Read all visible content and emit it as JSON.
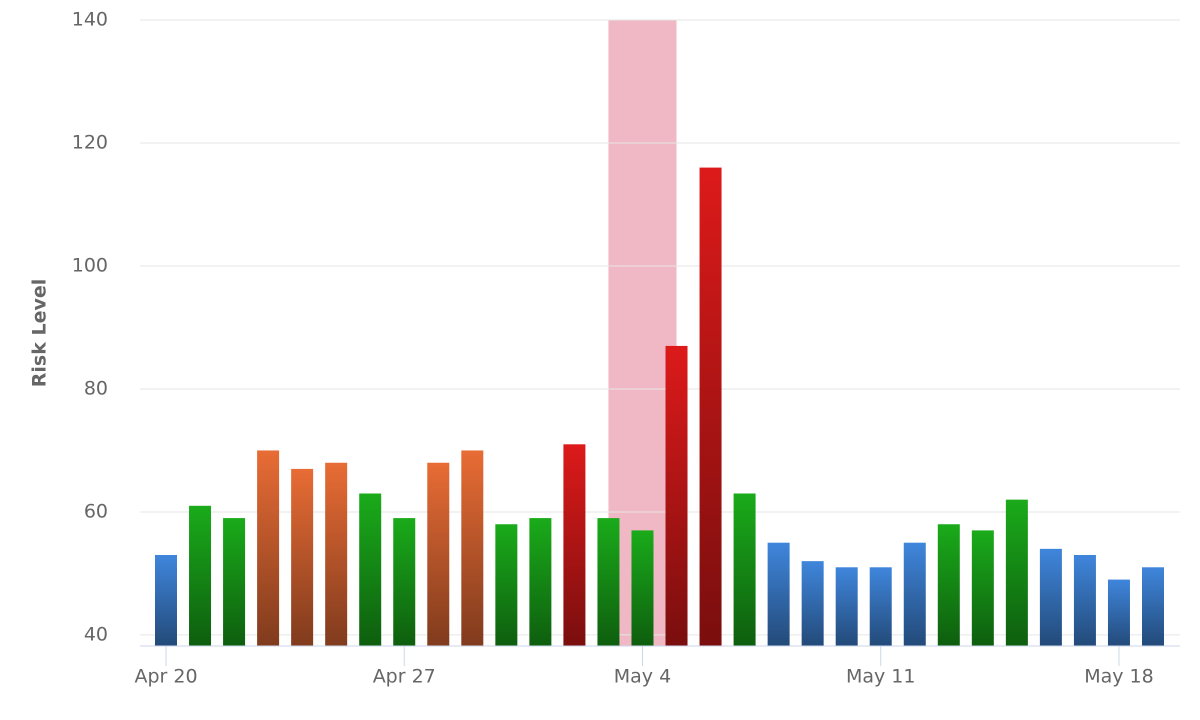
{
  "chart_data": {
    "type": "bar",
    "y_label": "Risk Level",
    "categories": [
      "Apr 20",
      null,
      null,
      null,
      null,
      null,
      null,
      "Apr 27",
      null,
      null,
      null,
      null,
      null,
      null,
      "May 4",
      null,
      null,
      null,
      null,
      null,
      null,
      "May 11",
      null,
      null,
      null,
      null,
      null,
      null,
      "May 18",
      null
    ],
    "values": [
      53,
      61,
      59,
      70,
      67,
      68,
      63,
      59,
      68,
      70,
      58,
      59,
      71,
      59,
      57,
      87,
      116,
      63,
      55,
      52,
      51,
      51,
      55,
      58,
      57,
      62,
      54,
      53,
      49,
      51
    ],
    "colors": [
      "#3f86dc",
      "#1aab1a",
      "#1aab1a",
      "#e86c35",
      "#e86c35",
      "#e86c35",
      "#1aab1a",
      "#1aab1a",
      "#e86c35",
      "#e86c35",
      "#1aab1a",
      "#1aab1a",
      "#dd1a1a",
      "#1aab1a",
      "#1aab1a",
      "#dd1a1a",
      "#dd1a1a",
      "#1aab1a",
      "#3f86dc",
      "#3f86dc",
      "#3f86dc",
      "#3f86dc",
      "#3f86dc",
      "#1aab1a",
      "#1aab1a",
      "#1aab1a",
      "#3f86dc",
      "#3f86dc",
      "#3f86dc",
      "#3f86dc"
    ],
    "plot_band": {
      "from": 13,
      "to": 15,
      "color": "#f0b8c4"
    },
    "ylim": [
      38.2,
      140
    ],
    "yticks": [
      40,
      60,
      80,
      100,
      120,
      140
    ],
    "grid": true
  }
}
